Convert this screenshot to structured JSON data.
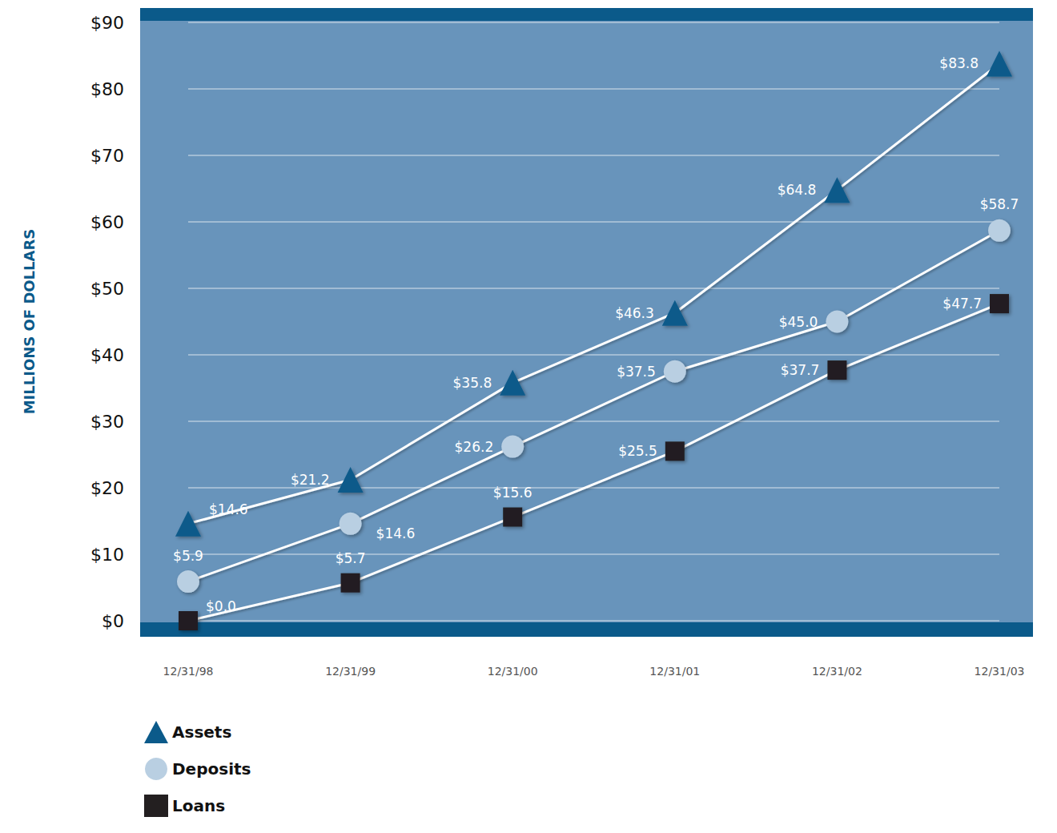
{
  "chart_data": {
    "type": "line",
    "y_label": "MILLIONS OF DOLLARS",
    "categories": [
      "12/31/98",
      "12/31/99",
      "12/31/00",
      "12/31/01",
      "12/31/02",
      "12/31/03"
    ],
    "series": [
      {
        "name": "Assets",
        "color": "#0b5a8a",
        "marker": "triangle",
        "values": [
          14.6,
          21.2,
          35.8,
          46.3,
          64.8,
          83.8
        ],
        "value_labels": [
          "$14.6",
          "$21.2",
          "$35.8",
          "$46.3",
          "$64.8",
          "$83.8"
        ]
      },
      {
        "name": "Deposits",
        "color": "#b9cfe2",
        "marker": "circle",
        "values": [
          5.9,
          14.6,
          26.2,
          37.5,
          45.0,
          58.7
        ],
        "value_labels": [
          "$5.9",
          "$14.6",
          "$26.2",
          "$37.5",
          "$45.0",
          "$58.7"
        ]
      },
      {
        "name": "Loans",
        "color": "#231f20",
        "marker": "square",
        "values": [
          0.0,
          5.7,
          15.6,
          25.5,
          37.7,
          47.7
        ],
        "value_labels": [
          "$0.0",
          "$5.7",
          "$15.6",
          "$25.5",
          "$37.7",
          "$47.7"
        ]
      }
    ],
    "ylim": [
      0,
      90
    ],
    "yticks": [
      {
        "value": 0,
        "label": "$0"
      },
      {
        "value": 10,
        "label": "$10"
      },
      {
        "value": 20,
        "label": "$20"
      },
      {
        "value": 30,
        "label": "$30"
      },
      {
        "value": 40,
        "label": "$40"
      },
      {
        "value": 50,
        "label": "$50"
      },
      {
        "value": 60,
        "label": "$60"
      },
      {
        "value": 70,
        "label": "$70"
      },
      {
        "value": 80,
        "label": "$80"
      },
      {
        "value": 90,
        "label": "$90"
      }
    ],
    "grid": true,
    "data_labels": true,
    "legend": "bottom-left"
  }
}
